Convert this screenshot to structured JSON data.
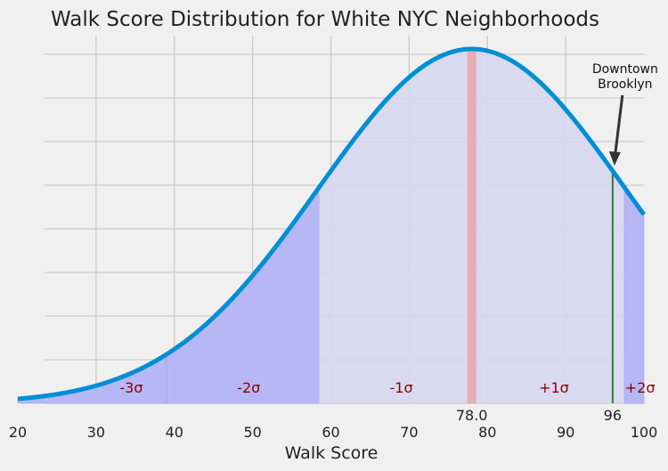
{
  "chart_data": {
    "type": "area",
    "title": "Walk Score Distribution for White NYC Neighborhoods",
    "xlabel": "Walk Score",
    "ylabel": "",
    "xlim": [
      20,
      100
    ],
    "x_ticks": [
      "20",
      "30",
      "40",
      "50",
      "60",
      "70",
      "80",
      "90",
      "100"
    ],
    "grid": true,
    "distribution": {
      "kind": "normal",
      "mean": 78.0,
      "std": 19.6
    },
    "sigma_bands": [
      {
        "label": "-3σ",
        "from": 20,
        "to": 39
      },
      {
        "label": "-2σ",
        "from": 39,
        "to": 58.5
      },
      {
        "label": "-1σ",
        "from": 58.5,
        "to": 97.5
      },
      {
        "label": "+1σ",
        "from": 58.5,
        "to": 97.5
      },
      {
        "label": "+2σ",
        "from": 97.5,
        "to": 100
      }
    ],
    "sigma_label_positions": [
      34.5,
      49.5,
      69,
      88.5,
      99.5
    ],
    "mean_marker": {
      "value": 78.0,
      "label": "78.0",
      "color": "#e8a0a0"
    },
    "highlight": {
      "value": 96,
      "label": "96",
      "color": "#2e7d32"
    },
    "annotation": {
      "text_line1": "Downtown",
      "text_line2": "Brooklyn",
      "points_to": 96
    },
    "colors": {
      "curve": "#008fd5",
      "band_dark": "#b3b3f5",
      "band_light": "#d6d6f0"
    }
  }
}
